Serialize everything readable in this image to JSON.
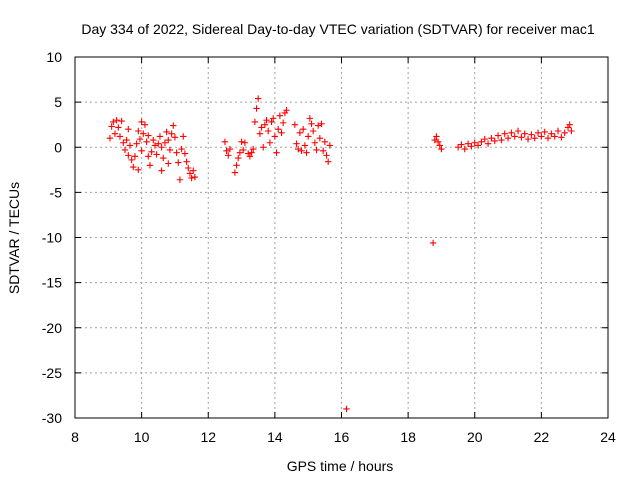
{
  "chart_data": {
    "type": "scatter",
    "title": "Day 334 of 2022, Sidereal Day-to-day VTEC variation (SDTVAR) for receiver mac1",
    "xlabel": "GPS time / hours",
    "ylabel": "SDTVAR / TECUs",
    "xlim": [
      8,
      24
    ],
    "ylim": [
      -30,
      10
    ],
    "xticks": [
      8,
      10,
      12,
      14,
      16,
      18,
      20,
      22,
      24
    ],
    "yticks": [
      10,
      5,
      0,
      -5,
      -10,
      -15,
      -20,
      -25,
      -30
    ],
    "grid": true,
    "marker": "+",
    "color": "#ff0000",
    "series": [
      {
        "name": "SDTVAR",
        "points": [
          [
            9.05,
            1.0
          ],
          [
            9.1,
            2.3
          ],
          [
            9.15,
            2.8
          ],
          [
            9.2,
            1.5
          ],
          [
            9.25,
            3.0
          ],
          [
            9.3,
            2.2
          ],
          [
            9.35,
            1.2
          ],
          [
            9.4,
            2.9
          ],
          [
            9.45,
            0.5
          ],
          [
            9.5,
            -0.3
          ],
          [
            9.55,
            0.8
          ],
          [
            9.6,
            -0.9
          ],
          [
            9.65,
            0.2
          ],
          [
            9.7,
            -1.4
          ],
          [
            9.75,
            -2.2
          ],
          [
            9.8,
            -1.0
          ],
          [
            9.85,
            0.4
          ],
          [
            9.9,
            1.8
          ],
          [
            9.95,
            0.9
          ],
          [
            10.0,
            -0.4
          ],
          [
            10.05,
            1.5
          ],
          [
            10.1,
            2.5
          ],
          [
            10.15,
            0.6
          ],
          [
            10.2,
            -1.0
          ],
          [
            10.25,
            -2.0
          ],
          [
            10.3,
            -0.5
          ],
          [
            10.35,
            0.8
          ],
          [
            10.4,
            0.2
          ],
          [
            10.45,
            -0.8
          ],
          [
            10.5,
            0.4
          ],
          [
            10.55,
            1.2
          ],
          [
            10.6,
            0.0
          ],
          [
            10.65,
            -1.2
          ],
          [
            10.7,
            0.5
          ],
          [
            10.75,
            1.7
          ],
          [
            10.8,
            0.8
          ],
          [
            10.85,
            -0.3
          ],
          [
            10.9,
            1.5
          ],
          [
            10.95,
            2.4
          ],
          [
            11.0,
            1.1
          ],
          [
            11.05,
            -0.6
          ],
          [
            11.1,
            -1.7
          ],
          [
            11.15,
            -3.6
          ],
          [
            11.2,
            -0.2
          ],
          [
            11.25,
            1.2
          ],
          [
            11.3,
            -0.7
          ],
          [
            11.35,
            -1.6
          ],
          [
            11.4,
            -2.3
          ],
          [
            11.45,
            -2.9
          ],
          [
            11.5,
            -3.4
          ],
          [
            11.55,
            -2.6
          ],
          [
            11.6,
            -3.3
          ],
          [
            9.6,
            2.0
          ],
          [
            9.9,
            -2.5
          ],
          [
            10.0,
            2.8
          ],
          [
            10.2,
            1.3
          ],
          [
            10.6,
            -2.6
          ],
          [
            10.8,
            -1.8
          ],
          [
            12.5,
            0.6
          ],
          [
            12.55,
            -0.4
          ],
          [
            12.6,
            -0.9
          ],
          [
            12.65,
            -0.2
          ],
          [
            12.8,
            -2.8
          ],
          [
            12.85,
            -2.0
          ],
          [
            12.9,
            -1.2
          ],
          [
            12.95,
            -0.6
          ],
          [
            13.0,
            0.6
          ],
          [
            13.05,
            -0.3
          ],
          [
            13.1,
            0.5
          ],
          [
            13.2,
            -0.7
          ],
          [
            13.25,
            -1.0
          ],
          [
            13.3,
            -0.6
          ],
          [
            13.35,
            -0.2
          ],
          [
            13.4,
            2.8
          ],
          [
            13.45,
            4.3
          ],
          [
            13.5,
            5.4
          ],
          [
            13.55,
            1.5
          ],
          [
            13.6,
            2.2
          ],
          [
            13.65,
            0.0
          ],
          [
            13.7,
            2.5
          ],
          [
            13.75,
            3.0
          ],
          [
            13.8,
            1.8
          ],
          [
            13.85,
            0.5
          ],
          [
            13.9,
            2.8
          ],
          [
            13.95,
            3.2
          ],
          [
            14.0,
            1.2
          ],
          [
            14.05,
            -0.6
          ],
          [
            14.1,
            2.0
          ],
          [
            14.15,
            3.5
          ],
          [
            14.2,
            1.6
          ],
          [
            14.25,
            2.7
          ],
          [
            14.3,
            3.8
          ],
          [
            14.35,
            4.1
          ],
          [
            14.6,
            2.5
          ],
          [
            14.65,
            0.4
          ],
          [
            14.7,
            -0.2
          ],
          [
            14.75,
            1.6
          ],
          [
            14.8,
            -0.4
          ],
          [
            14.85,
            2.0
          ],
          [
            14.9,
            0.2
          ],
          [
            14.95,
            -0.6
          ],
          [
            15.0,
            1.2
          ],
          [
            15.05,
            3.2
          ],
          [
            15.1,
            2.6
          ],
          [
            15.15,
            1.8
          ],
          [
            15.2,
            0.5
          ],
          [
            15.25,
            -0.3
          ],
          [
            15.3,
            2.4
          ],
          [
            15.35,
            1.0
          ],
          [
            15.4,
            2.6
          ],
          [
            15.45,
            -0.4
          ],
          [
            15.5,
            0.6
          ],
          [
            15.55,
            -0.9
          ],
          [
            15.6,
            -1.6
          ],
          [
            15.65,
            0.2
          ],
          [
            16.15,
            -29.0
          ],
          [
            18.75,
            -10.6
          ],
          [
            18.8,
            0.8
          ],
          [
            18.85,
            1.2
          ],
          [
            18.9,
            0.6
          ],
          [
            18.95,
            0.2
          ],
          [
            19.0,
            -0.2
          ],
          [
            19.5,
            0.0
          ],
          [
            19.6,
            0.3
          ],
          [
            19.7,
            -0.2
          ],
          [
            19.8,
            0.4
          ],
          [
            19.9,
            0.1
          ],
          [
            20.0,
            0.5
          ],
          [
            20.1,
            0.2
          ],
          [
            20.2,
            0.6
          ],
          [
            20.3,
            0.9
          ],
          [
            20.4,
            0.4
          ],
          [
            20.5,
            1.0
          ],
          [
            20.6,
            0.7
          ],
          [
            20.7,
            1.3
          ],
          [
            20.8,
            0.8
          ],
          [
            20.9,
            1.5
          ],
          [
            21.0,
            1.0
          ],
          [
            21.1,
            1.6
          ],
          [
            21.2,
            1.2
          ],
          [
            21.3,
            1.8
          ],
          [
            21.4,
            1.1
          ],
          [
            21.5,
            1.5
          ],
          [
            21.6,
            0.9
          ],
          [
            21.7,
            1.4
          ],
          [
            21.8,
            1.0
          ],
          [
            21.9,
            1.6
          ],
          [
            22.0,
            1.2
          ],
          [
            22.1,
            1.7
          ],
          [
            22.2,
            1.0
          ],
          [
            22.3,
            1.5
          ],
          [
            22.4,
            1.2
          ],
          [
            22.5,
            1.8
          ],
          [
            22.6,
            1.1
          ],
          [
            22.7,
            1.6
          ],
          [
            22.8,
            2.2
          ],
          [
            22.85,
            2.5
          ],
          [
            22.9,
            1.8
          ]
        ]
      }
    ]
  }
}
